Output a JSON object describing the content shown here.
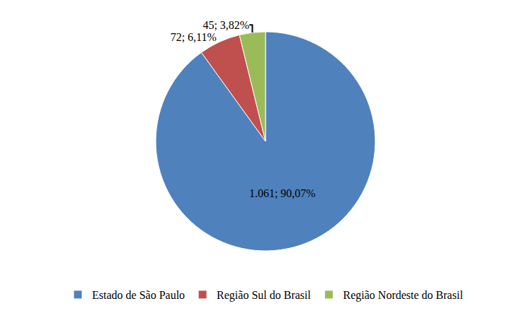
{
  "chart_data": {
    "type": "pie",
    "categories": [
      "Estado de São Paulo",
      "Região Sul do Brasil",
      "Região Nordeste do Brasil"
    ],
    "values": [
      1061,
      72,
      45
    ],
    "value_labels": [
      "1.061; 90,07%",
      "72; 6,11%",
      "45; 3,82%"
    ],
    "colors": [
      "#4f81bd",
      "#c0504d",
      "#9bbb59"
    ],
    "data_labels": true,
    "legend": "bottom"
  }
}
